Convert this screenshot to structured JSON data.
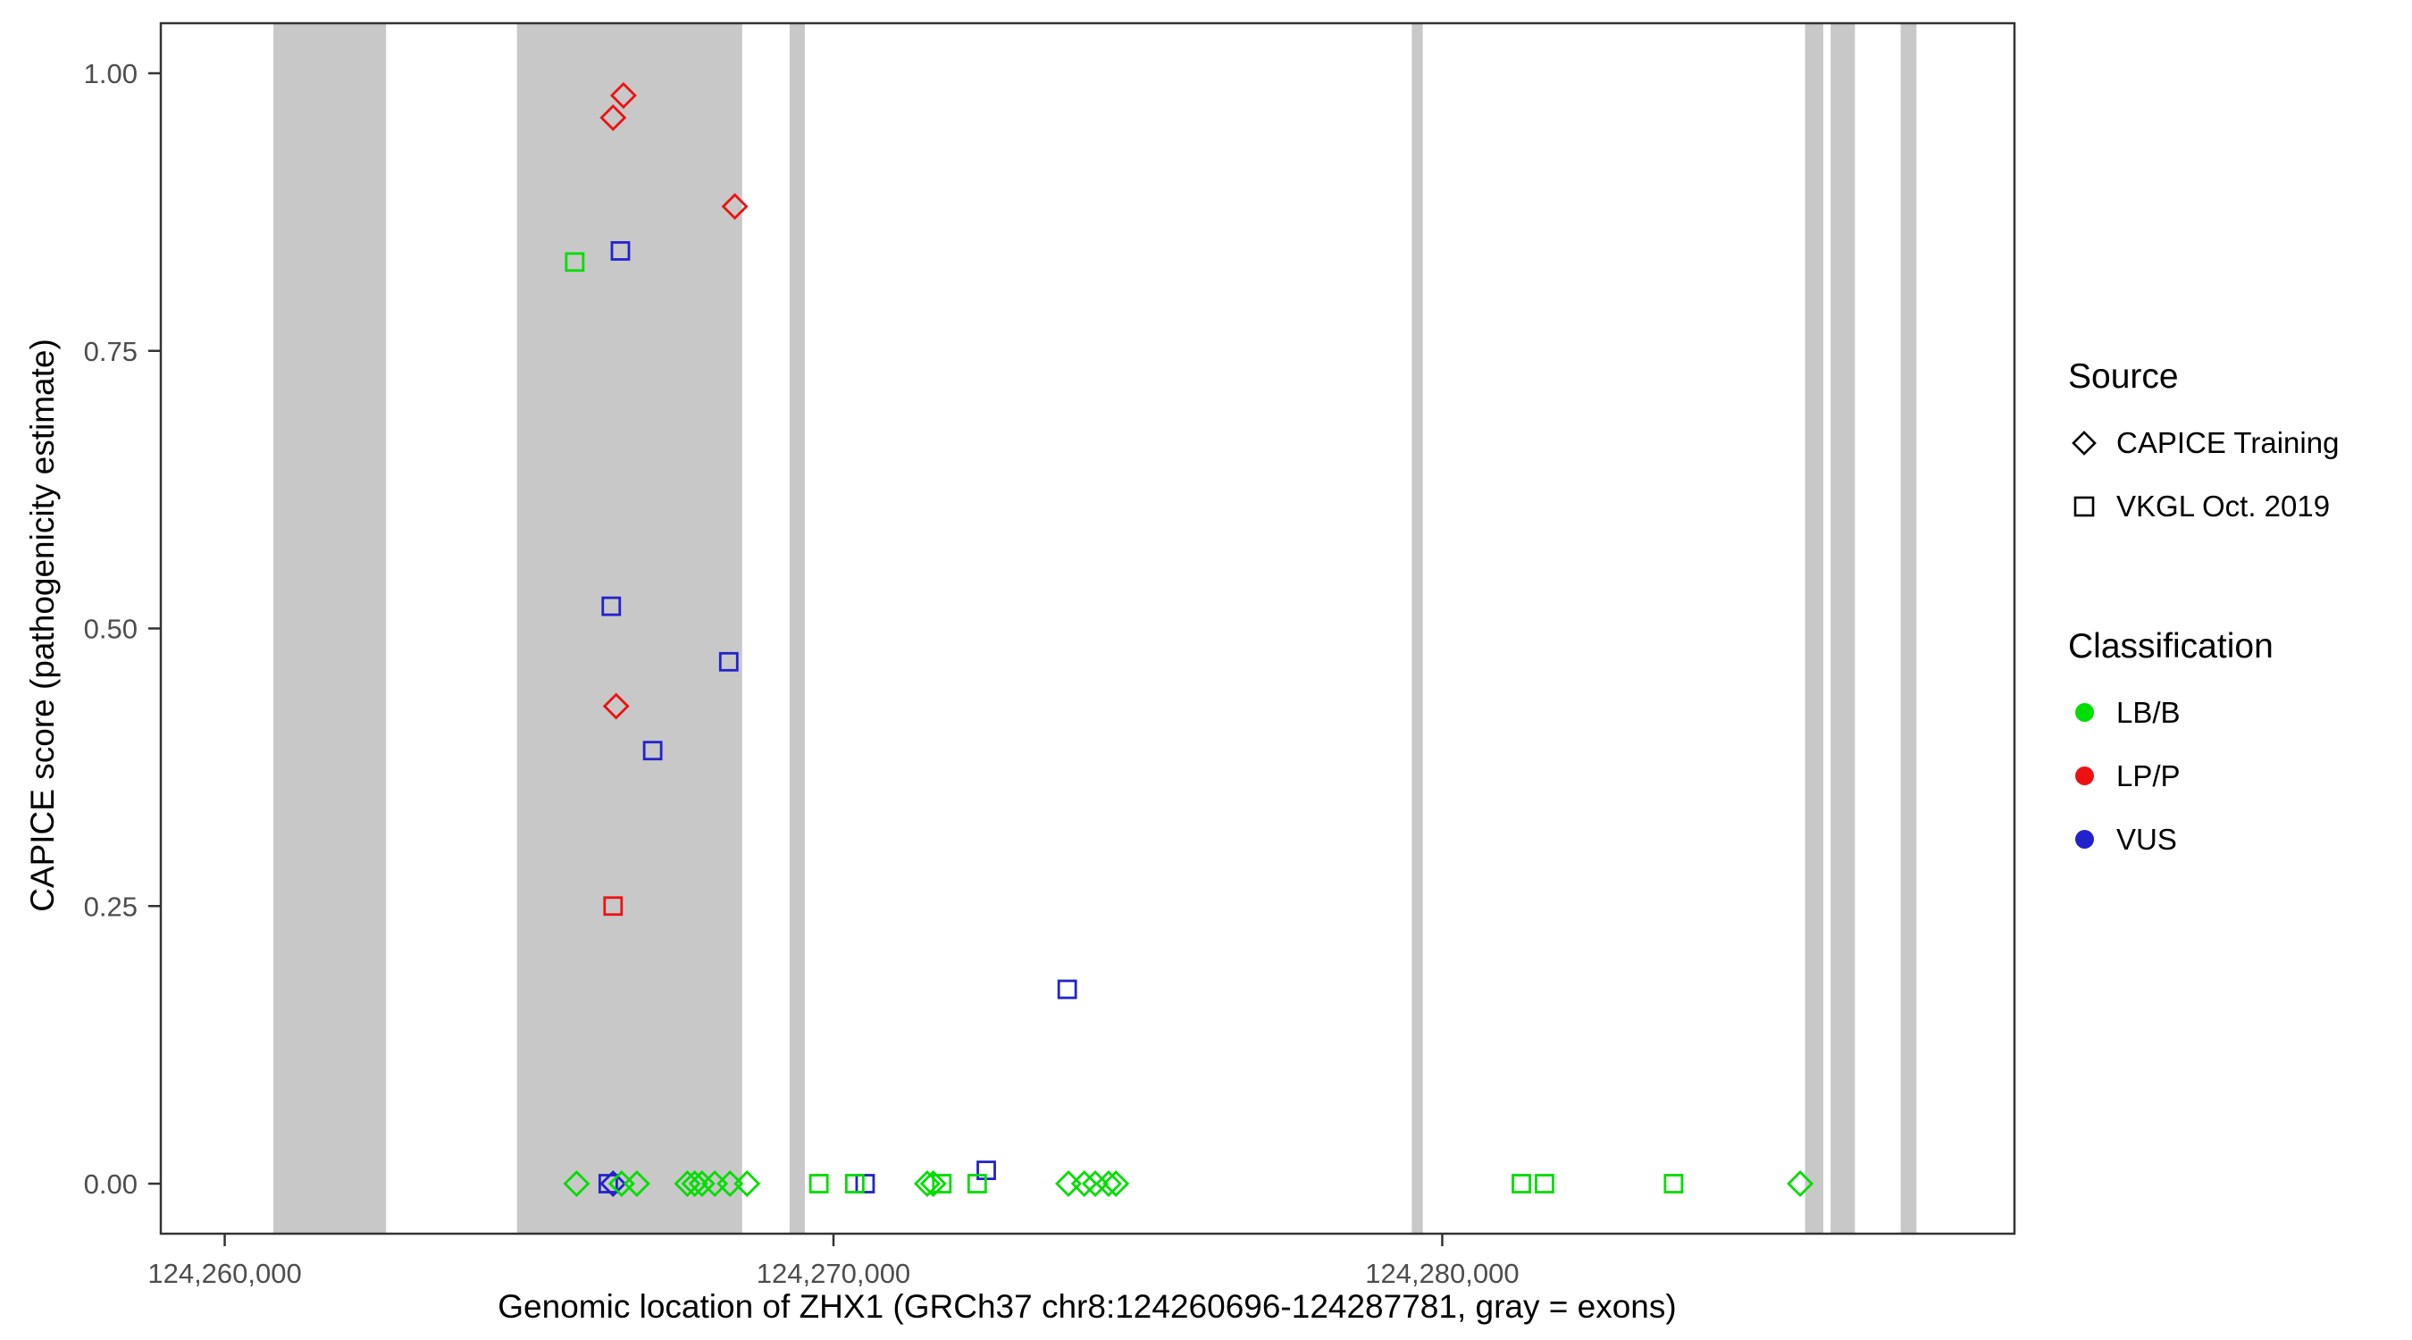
{
  "chart_data": {
    "type": "scatter",
    "title": "",
    "xlabel": "Genomic location of ZHX1 (GRCh37 chr8:124260696-124287781, gray = exons)",
    "ylabel": "CAPICE score (pathogenicity estimate)",
    "xlim": [
      124258950,
      124289400
    ],
    "ylim": [
      0,
      1
    ],
    "grid": false,
    "x_ticks": [
      {
        "value": 124260000,
        "label": "124,260,000"
      },
      {
        "value": 124270000,
        "label": "124,270,000"
      },
      {
        "value": 124280000,
        "label": "124,280,000"
      }
    ],
    "y_ticks": [
      {
        "value": 0.0,
        "label": "0.00"
      },
      {
        "value": 0.25,
        "label": "0.25"
      },
      {
        "value": 0.5,
        "label": "0.50"
      },
      {
        "value": 0.75,
        "label": "0.75"
      },
      {
        "value": 1.0,
        "label": "1.00"
      }
    ],
    "exon_note": "gray = exons",
    "exon_color": "#c8c8c8",
    "exons": [
      [
        124260800,
        124262650
      ],
      [
        124264800,
        124268500
      ],
      [
        124269280,
        124269530
      ],
      [
        124279500,
        124279680
      ],
      [
        124285960,
        124286260
      ],
      [
        124286380,
        124286780
      ],
      [
        124287530,
        124287790
      ]
    ],
    "source_shapes": {
      "CAPICE Training": "diamond",
      "VKGL Oct. 2019": "square"
    },
    "series_colors": {
      "LB/B": "#00dd00",
      "LP/P": "#ee1111",
      "VUS": "#2222cc"
    },
    "points": [
      {
        "x": 124266550,
        "y": 0.98,
        "source": "CAPICE Training",
        "cls": "LP/P"
      },
      {
        "x": 124266380,
        "y": 0.96,
        "source": "CAPICE Training",
        "cls": "LP/P"
      },
      {
        "x": 124268380,
        "y": 0.88,
        "source": "CAPICE Training",
        "cls": "LP/P"
      },
      {
        "x": 124266430,
        "y": 0.43,
        "source": "CAPICE Training",
        "cls": "LP/P"
      },
      {
        "x": 124266380,
        "y": 0.25,
        "source": "VKGL Oct. 2019",
        "cls": "LP/P"
      },
      {
        "x": 124265750,
        "y": 0.83,
        "source": "VKGL Oct. 2019",
        "cls": "LB/B"
      },
      {
        "x": 124266500,
        "y": 0.84,
        "source": "VKGL Oct. 2019",
        "cls": "VUS"
      },
      {
        "x": 124266350,
        "y": 0.52,
        "source": "VKGL Oct. 2019",
        "cls": "VUS"
      },
      {
        "x": 124268280,
        "y": 0.47,
        "source": "VKGL Oct. 2019",
        "cls": "VUS"
      },
      {
        "x": 124267030,
        "y": 0.39,
        "source": "VKGL Oct. 2019",
        "cls": "VUS"
      },
      {
        "x": 124273840,
        "y": 0.175,
        "source": "VKGL Oct. 2019",
        "cls": "VUS"
      },
      {
        "x": 124272510,
        "y": 0.012,
        "source": "VKGL Oct. 2019",
        "cls": "VUS"
      },
      {
        "x": 124266300,
        "y": 0,
        "source": "VKGL Oct. 2019",
        "cls": "VUS"
      },
      {
        "x": 124266380,
        "y": 0,
        "source": "CAPICE Training",
        "cls": "VUS"
      },
      {
        "x": 124270520,
        "y": 0,
        "source": "VKGL Oct. 2019",
        "cls": "VUS"
      },
      {
        "x": 124265780,
        "y": 0,
        "source": "CAPICE Training",
        "cls": "LB/B"
      },
      {
        "x": 124266520,
        "y": 0,
        "source": "CAPICE Training",
        "cls": "LB/B"
      },
      {
        "x": 124266770,
        "y": 0,
        "source": "CAPICE Training",
        "cls": "LB/B"
      },
      {
        "x": 124267600,
        "y": 0,
        "source": "CAPICE Training",
        "cls": "LB/B"
      },
      {
        "x": 124267720,
        "y": 0,
        "source": "CAPICE Training",
        "cls": "LB/B"
      },
      {
        "x": 124267840,
        "y": 0,
        "source": "CAPICE Training",
        "cls": "LB/B"
      },
      {
        "x": 124268050,
        "y": 0,
        "source": "CAPICE Training",
        "cls": "LB/B"
      },
      {
        "x": 124268300,
        "y": 0,
        "source": "CAPICE Training",
        "cls": "LB/B"
      },
      {
        "x": 124268580,
        "y": 0,
        "source": "CAPICE Training",
        "cls": "LB/B"
      },
      {
        "x": 124271540,
        "y": 0,
        "source": "CAPICE Training",
        "cls": "LB/B"
      },
      {
        "x": 124271640,
        "y": 0,
        "source": "CAPICE Training",
        "cls": "LB/B"
      },
      {
        "x": 124273860,
        "y": 0,
        "source": "CAPICE Training",
        "cls": "LB/B"
      },
      {
        "x": 124274120,
        "y": 0,
        "source": "CAPICE Training",
        "cls": "LB/B"
      },
      {
        "x": 124274300,
        "y": 0,
        "source": "CAPICE Training",
        "cls": "LB/B"
      },
      {
        "x": 124274520,
        "y": 0,
        "source": "CAPICE Training",
        "cls": "LB/B"
      },
      {
        "x": 124274640,
        "y": 0,
        "source": "CAPICE Training",
        "cls": "LB/B"
      },
      {
        "x": 124285880,
        "y": 0,
        "source": "CAPICE Training",
        "cls": "LB/B"
      },
      {
        "x": 124269760,
        "y": 0,
        "source": "VKGL Oct. 2019",
        "cls": "LB/B"
      },
      {
        "x": 124270350,
        "y": 0,
        "source": "VKGL Oct. 2019",
        "cls": "LB/B"
      },
      {
        "x": 124271780,
        "y": 0,
        "source": "VKGL Oct. 2019",
        "cls": "LB/B"
      },
      {
        "x": 124272360,
        "y": 0,
        "source": "VKGL Oct. 2019",
        "cls": "LB/B"
      },
      {
        "x": 124281300,
        "y": 0,
        "source": "VKGL Oct. 2019",
        "cls": "LB/B"
      },
      {
        "x": 124281680,
        "y": 0,
        "source": "VKGL Oct. 2019",
        "cls": "LB/B"
      },
      {
        "x": 124283800,
        "y": 0,
        "source": "VKGL Oct. 2019",
        "cls": "LB/B"
      }
    ]
  },
  "legend": {
    "source_title": "Source",
    "source_items": [
      {
        "label": "CAPICE Training",
        "shape": "diamond"
      },
      {
        "label": "VKGL Oct. 2019",
        "shape": "square"
      }
    ],
    "class_title": "Classification",
    "class_items": [
      {
        "label": "LB/B",
        "color": "#00dd00"
      },
      {
        "label": "LP/P",
        "color": "#ee1111"
      },
      {
        "label": "VUS",
        "color": "#2222cc"
      }
    ]
  }
}
